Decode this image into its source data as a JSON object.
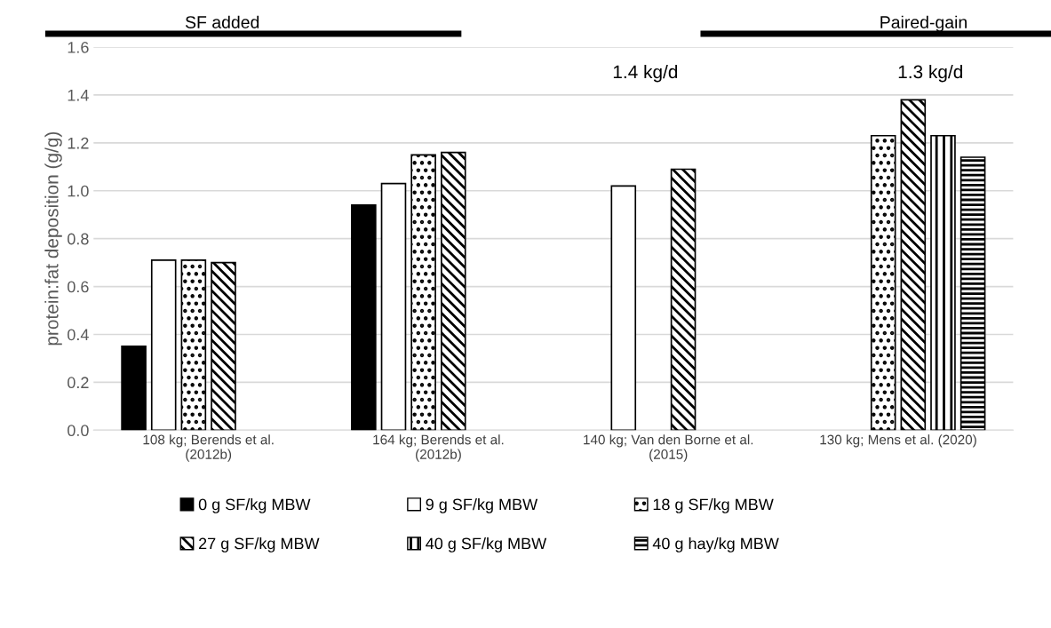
{
  "chart_data": {
    "type": "bar",
    "ylabel": "protein:fat deposition (g/g)",
    "categories": [
      "108 kg; Berends et al. (2012b)",
      "164 kg; Berends et al. (2012b)",
      "140 kg; Van den Borne et al. (2015)",
      "130 kg; Mens et al. (2020)"
    ],
    "series": [
      {
        "name": "0 g SF/kg MBW",
        "color": "#000000",
        "values": [
          0.35,
          0.94,
          null,
          null
        ]
      },
      {
        "name": "9 g SF/kg MBW",
        "color": "#ffffff",
        "values": [
          0.71,
          1.03,
          1.02,
          null
        ]
      },
      {
        "name": "18 g SF/kg MBW",
        "color": "#000000",
        "values": [
          0.71,
          1.15,
          null,
          1.23
        ]
      },
      {
        "name": "27 g SF/kg MBW",
        "color": "#000000",
        "values": [
          0.7,
          1.16,
          1.09,
          1.38
        ]
      },
      {
        "name": "40 g SF/kg MBW",
        "color": "#000000",
        "values": [
          null,
          null,
          null,
          1.23
        ]
      },
      {
        "name": "40 g hay/kg MBW",
        "color": "#000000",
        "values": [
          null,
          null,
          null,
          1.14
        ]
      }
    ],
    "ylim": [
      0,
      1.6
    ],
    "yticks": [
      {
        "value": 0,
        "label": "0.0"
      },
      {
        "value": 0.2,
        "label": "0.2"
      },
      {
        "value": 0.4,
        "label": "0.4"
      },
      {
        "value": 0.6,
        "label": "0.6"
      },
      {
        "value": 0.8,
        "label": "0.8"
      },
      {
        "value": 1.0,
        "label": "1.0"
      },
      {
        "value": 1.2,
        "label": "1.2"
      },
      {
        "value": 1.4,
        "label": "1.4"
      },
      {
        "value": 1.6,
        "label": "1.6"
      }
    ],
    "grid": "y",
    "legend": "bottom",
    "annotations": [
      "SF added",
      "Paired-gain",
      "1.4 kg/d",
      "1.3 kg/d"
    ]
  }
}
